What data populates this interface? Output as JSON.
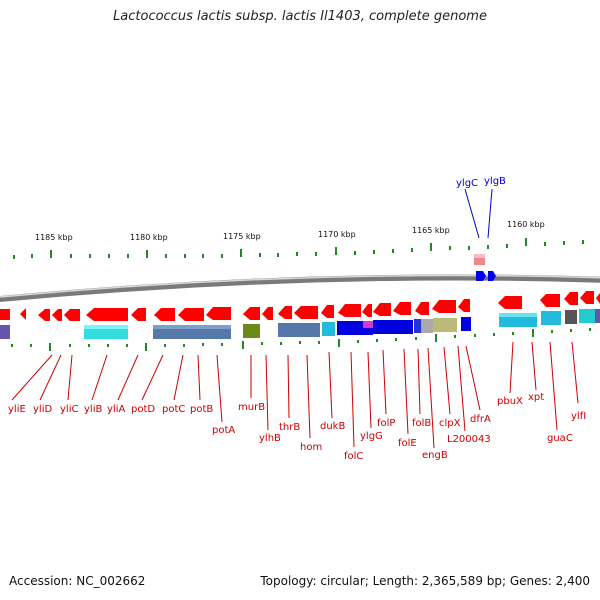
{
  "title": "Lactococcus lactis subsp. lactis Il1403, complete genome",
  "accession": "Accession: NC_002662",
  "summary": "Topology: circular; Length: 2,365,589 bp; Genes: 2,400",
  "scale_labels": [
    "1185 kbp",
    "1180 kbp",
    "1175 kbp",
    "1170 kbp",
    "1165 kbp",
    "1160 kbp"
  ],
  "genes_forward": [
    "ylgC",
    "ylgB"
  ],
  "genes_reverse": [
    "yliE",
    "yliD",
    "yliC",
    "yliB",
    "yliA",
    "potD",
    "potC",
    "potB",
    "potA",
    "murB",
    "ylhB",
    "thrB",
    "hom",
    "dukB",
    "folC",
    "ylgG",
    "folP",
    "folE",
    "folB",
    "engB",
    "clpX",
    "L200043",
    "dfrA",
    "pbuX",
    "xpt",
    "guaC",
    "ylfI"
  ],
  "colors": {
    "reverse_gene": "#ff0000",
    "forward_gene": "#0000ee",
    "label_reverse": "#cc0000",
    "label_forward": "#0000cc",
    "tick": "#228822",
    "backbone": "#888888"
  }
}
